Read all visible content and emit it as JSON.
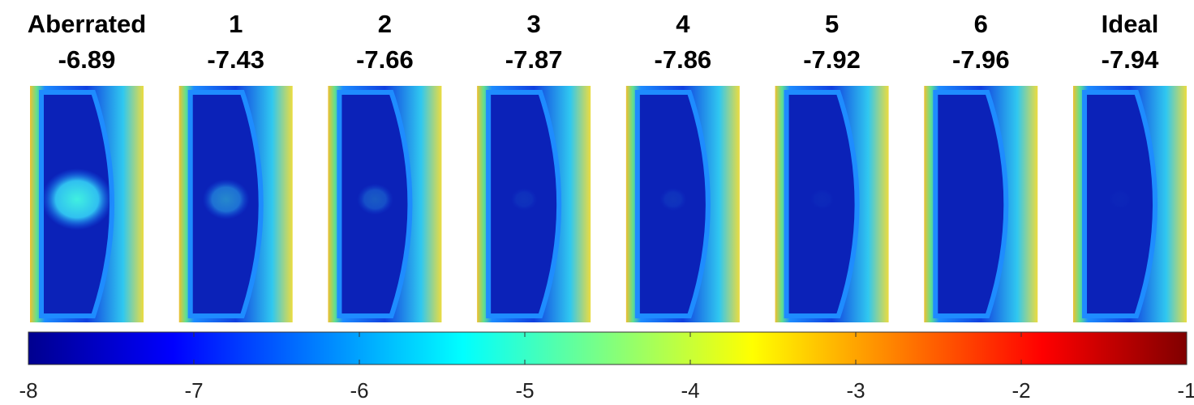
{
  "chart_data": {
    "type": "heatmap",
    "panels": [
      {
        "name": "Aberrated",
        "value": -6.89
      },
      {
        "name": "1",
        "value": -7.43
      },
      {
        "name": "2",
        "value": -7.66
      },
      {
        "name": "3",
        "value": -7.87
      },
      {
        "name": "4",
        "value": -7.86
      },
      {
        "name": "5",
        "value": -7.92
      },
      {
        "name": "6",
        "value": -7.96
      },
      {
        "name": "Ideal",
        "value": -7.94
      }
    ],
    "colormap": "jet",
    "clim": [
      -8,
      -1
    ],
    "cticks": [
      -8,
      -7,
      -6,
      -5,
      -4,
      -3,
      -2,
      -1
    ]
  }
}
